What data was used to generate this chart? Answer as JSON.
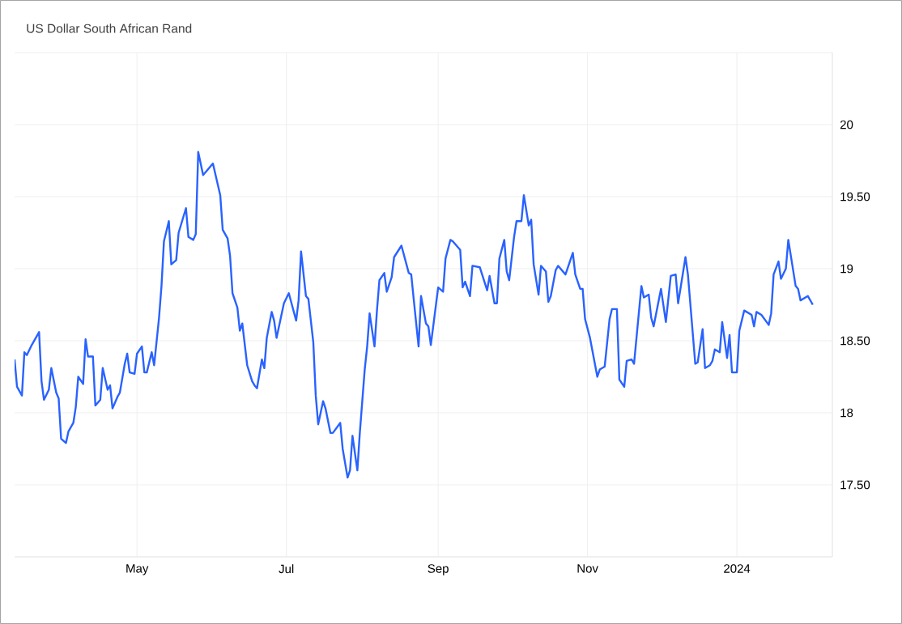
{
  "chart_data": {
    "type": "line",
    "title": "US Dollar South African Rand",
    "x": [
      "2023-03-12",
      "2023-03-13",
      "2023-03-15",
      "2023-03-16",
      "2023-03-17",
      "2023-03-19",
      "2023-03-22",
      "2023-03-23",
      "2023-03-24",
      "2023-03-26",
      "2023-03-27",
      "2023-03-29",
      "2023-03-30",
      "2023-03-31",
      "2023-04-02",
      "2023-04-03",
      "2023-04-05",
      "2023-04-06",
      "2023-04-07",
      "2023-04-09",
      "2023-04-10",
      "2023-04-11",
      "2023-04-13",
      "2023-04-14",
      "2023-04-16",
      "2023-04-17",
      "2023-04-19",
      "2023-04-20",
      "2023-04-21",
      "2023-04-23",
      "2023-04-24",
      "2023-04-26",
      "2023-04-27",
      "2023-04-28",
      "2023-04-30",
      "2023-05-01",
      "2023-05-03",
      "2023-05-04",
      "2023-05-05",
      "2023-05-07",
      "2023-05-08",
      "2023-05-10",
      "2023-05-11",
      "2023-05-12",
      "2023-05-14",
      "2023-05-15",
      "2023-05-17",
      "2023-05-18",
      "2023-05-21",
      "2023-05-22",
      "2023-05-24",
      "2023-05-25",
      "2023-05-26",
      "2023-05-28",
      "2023-06-01",
      "2023-06-04",
      "2023-06-05",
      "2023-06-07",
      "2023-06-08",
      "2023-06-09",
      "2023-06-11",
      "2023-06-12",
      "2023-06-13",
      "2023-06-15",
      "2023-06-17",
      "2023-06-18",
      "2023-06-19",
      "2023-06-21",
      "2023-06-22",
      "2023-06-23",
      "2023-06-25",
      "2023-06-26",
      "2023-06-27",
      "2023-06-30",
      "2023-07-02",
      "2023-07-05",
      "2023-07-06",
      "2023-07-07",
      "2023-07-09",
      "2023-07-10",
      "2023-07-12",
      "2023-07-13",
      "2023-07-14",
      "2023-07-16",
      "2023-07-17",
      "2023-07-19",
      "2023-07-20",
      "2023-07-23",
      "2023-07-24",
      "2023-07-26",
      "2023-07-27",
      "2023-07-28",
      "2023-07-30",
      "2023-07-31",
      "2023-08-02",
      "2023-08-03",
      "2023-08-04",
      "2023-08-06",
      "2023-08-07",
      "2023-08-08",
      "2023-08-10",
      "2023-08-11",
      "2023-08-13",
      "2023-08-14",
      "2023-08-17",
      "2023-08-20",
      "2023-08-21",
      "2023-08-22",
      "2023-08-24",
      "2023-08-25",
      "2023-08-27",
      "2023-08-28",
      "2023-08-29",
      "2023-09-01",
      "2023-09-03",
      "2023-09-04",
      "2023-09-06",
      "2023-09-07",
      "2023-09-08",
      "2023-09-10",
      "2023-09-11",
      "2023-09-12",
      "2023-09-14",
      "2023-09-15",
      "2023-09-18",
      "2023-09-21",
      "2023-09-22",
      "2023-09-24",
      "2023-09-25",
      "2023-09-26",
      "2023-09-28",
      "2023-09-29",
      "2023-09-30",
      "2023-10-02",
      "2023-10-03",
      "2023-10-05",
      "2023-10-06",
      "2023-10-08",
      "2023-10-09",
      "2023-10-10",
      "2023-10-12",
      "2023-10-13",
      "2023-10-15",
      "2023-10-16",
      "2023-10-17",
      "2023-10-19",
      "2023-10-20",
      "2023-10-23",
      "2023-10-26",
      "2023-10-27",
      "2023-10-29",
      "2023-10-30",
      "2023-10-31",
      "2023-11-02",
      "2023-11-03",
      "2023-11-05",
      "2023-11-06",
      "2023-11-08",
      "2023-11-10",
      "2023-11-11",
      "2023-11-13",
      "2023-11-14",
      "2023-11-16",
      "2023-11-17",
      "2023-11-19",
      "2023-11-20",
      "2023-11-23",
      "2023-11-24",
      "2023-11-26",
      "2023-11-27",
      "2023-11-28",
      "2023-12-01",
      "2023-12-03",
      "2023-12-05",
      "2023-12-07",
      "2023-12-08",
      "2023-12-11",
      "2023-12-12",
      "2023-12-15",
      "2023-12-16",
      "2023-12-18",
      "2023-12-19",
      "2023-12-21",
      "2023-12-22",
      "2023-12-23",
      "2023-12-25",
      "2023-12-26",
      "2023-12-28",
      "2023-12-29",
      "2023-12-30",
      "2024-01-01",
      "2024-01-02",
      "2024-01-04",
      "2024-01-05",
      "2024-01-07",
      "2024-01-08",
      "2024-01-09",
      "2024-01-11",
      "2024-01-14",
      "2024-01-15",
      "2024-01-16",
      "2024-01-18",
      "2024-01-19",
      "2024-01-21",
      "2024-01-22",
      "2024-01-25",
      "2024-01-26",
      "2024-01-27",
      "2024-01-30",
      "2024-02-01"
    ],
    "series": [
      {
        "color": "#2962ff",
        "values": [
          18.37,
          18.18,
          18.12,
          18.42,
          18.4,
          18.47,
          18.56,
          18.22,
          18.09,
          18.16,
          18.31,
          18.14,
          18.1,
          17.82,
          17.79,
          17.87,
          17.93,
          18.04,
          18.25,
          18.2,
          18.51,
          18.39,
          18.39,
          18.05,
          18.09,
          18.31,
          18.16,
          18.19,
          18.03,
          18.11,
          18.14,
          18.34,
          18.41,
          18.28,
          18.27,
          18.41,
          18.46,
          18.28,
          18.28,
          18.42,
          18.33,
          18.66,
          18.88,
          19.19,
          19.33,
          19.03,
          19.06,
          19.25,
          19.42,
          19.22,
          19.2,
          19.24,
          19.81,
          19.65,
          19.73,
          19.51,
          19.27,
          19.21,
          19.09,
          18.83,
          18.73,
          18.57,
          18.62,
          18.33,
          18.22,
          18.19,
          18.17,
          18.37,
          18.31,
          18.52,
          18.7,
          18.64,
          18.52,
          18.76,
          18.83,
          18.64,
          18.78,
          19.12,
          18.81,
          18.79,
          18.49,
          18.12,
          17.92,
          18.08,
          18.03,
          17.86,
          17.86,
          17.93,
          17.75,
          17.55,
          17.6,
          17.84,
          17.6,
          17.86,
          18.3,
          18.46,
          18.69,
          18.46,
          18.71,
          18.92,
          18.97,
          18.84,
          18.94,
          19.08,
          19.16,
          18.97,
          18.96,
          18.79,
          18.46,
          18.81,
          18.62,
          18.6,
          18.47,
          18.87,
          18.84,
          19.07,
          19.2,
          19.19,
          19.17,
          19.13,
          18.87,
          18.91,
          18.81,
          19.02,
          19.01,
          18.85,
          18.95,
          18.76,
          18.76,
          19.07,
          19.2,
          18.98,
          18.92,
          19.22,
          19.33,
          19.33,
          19.51,
          19.3,
          19.34,
          19.03,
          18.82,
          19.02,
          18.98,
          18.77,
          18.81,
          18.99,
          19.02,
          18.96,
          19.11,
          18.96,
          18.86,
          18.86,
          18.65,
          18.52,
          18.43,
          18.25,
          18.3,
          18.32,
          18.65,
          18.72,
          18.72,
          18.23,
          18.18,
          18.36,
          18.37,
          18.34,
          18.88,
          18.8,
          18.82,
          18.66,
          18.6,
          18.86,
          18.63,
          18.95,
          18.96,
          18.76,
          19.08,
          18.96,
          18.34,
          18.35,
          18.58,
          18.31,
          18.33,
          18.36,
          18.44,
          18.42,
          18.63,
          18.38,
          18.54,
          18.28,
          18.28,
          18.57,
          18.71,
          18.7,
          18.68,
          18.6,
          18.7,
          18.68,
          18.61,
          18.69,
          18.96,
          19.05,
          18.93,
          19.0,
          19.2,
          18.88,
          18.86,
          18.78,
          18.81,
          18.75
        ]
      }
    ],
    "xlim": [
      "2023-03-12",
      "2024-02-09"
    ],
    "xticks": [
      {
        "value": "2023-05-01",
        "label": "May"
      },
      {
        "value": "2023-07-01",
        "label": "Jul"
      },
      {
        "value": "2023-09-01",
        "label": "Sep"
      },
      {
        "value": "2023-11-01",
        "label": "Nov"
      },
      {
        "value": "2024-01-01",
        "label": "2024"
      }
    ],
    "ylim": [
      17,
      20.5
    ],
    "yticks": [
      {
        "value": 17.5,
        "label": "17.50"
      },
      18,
      {
        "value": 18.5,
        "label": "18.50"
      },
      19,
      {
        "value": 19.5,
        "label": "19.50"
      },
      20,
      {
        "value": 20.5,
        "label": null
      }
    ],
    "grid": true
  }
}
